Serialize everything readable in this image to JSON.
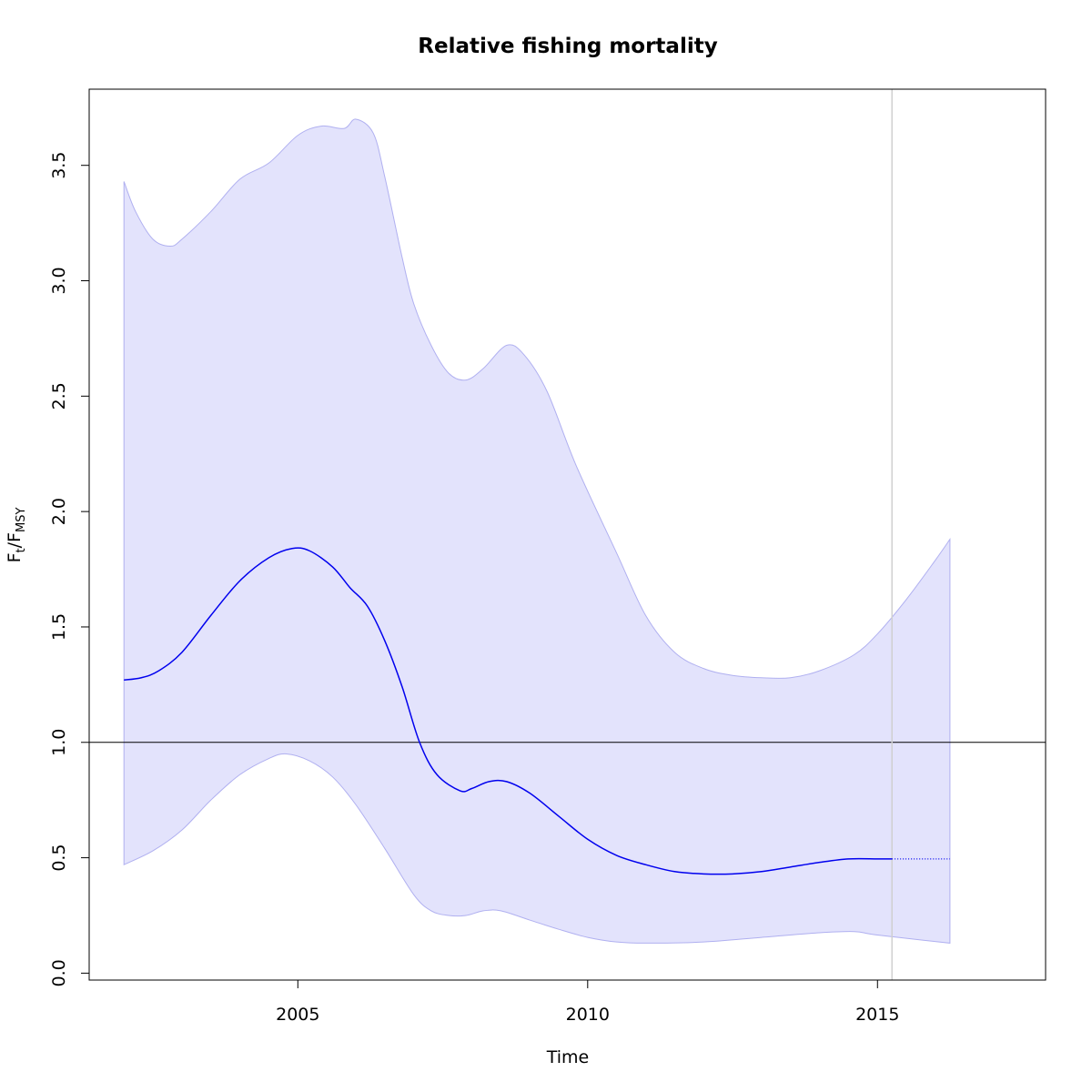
{
  "chart_data": {
    "type": "line",
    "title": "Relative fishing mortality",
    "xlabel": "Time",
    "ylabel": {
      "main": "F",
      "sub1": "t",
      "slash": "/",
      "main2": "F",
      "sub2": "MSY"
    },
    "xlim": [
      2001.4,
      2017.9
    ],
    "ylim": [
      -0.03,
      3.83
    ],
    "x_ticks": [
      2005,
      2010,
      2015
    ],
    "y_ticks": [
      0.0,
      0.5,
      1.0,
      1.5,
      2.0,
      2.5,
      3.0,
      3.5
    ],
    "x_tick_labels": [
      "2005",
      "2010",
      "2015"
    ],
    "y_tick_labels": [
      "0.0",
      "0.5",
      "1.0",
      "1.5",
      "2.0",
      "2.5",
      "3.0",
      "3.5"
    ],
    "reference_line_y": 1.0,
    "last_observation_x": 2015.25,
    "colors": {
      "estimate": "#0000ee",
      "ci_fill": "#e3e3fc",
      "ci_border": "#b0b0f0",
      "reference": "#000000",
      "vertical_marker": "#d0d0d0"
    },
    "series": [
      {
        "name": "estimate",
        "x": [
          2002.0,
          2002.3,
          2002.6,
          2003.0,
          2003.5,
          2004.0,
          2004.5,
          2004.9,
          2005.2,
          2005.6,
          2005.9,
          2006.2,
          2006.5,
          2006.8,
          2007.1,
          2007.4,
          2007.8,
          2008.0,
          2008.3,
          2008.6,
          2009.0,
          2009.5,
          2010.0,
          2010.5,
          2011.0,
          2011.5,
          2012.0,
          2012.5,
          2013.0,
          2013.5,
          2014.0,
          2014.5,
          2015.0,
          2015.25
        ],
        "y": [
          1.27,
          1.28,
          1.31,
          1.39,
          1.55,
          1.7,
          1.8,
          1.84,
          1.83,
          1.76,
          1.67,
          1.59,
          1.44,
          1.24,
          1.0,
          0.86,
          0.79,
          0.8,
          0.83,
          0.83,
          0.78,
          0.68,
          0.58,
          0.51,
          0.47,
          0.44,
          0.43,
          0.43,
          0.44,
          0.46,
          0.48,
          0.495,
          0.495,
          0.495
        ]
      },
      {
        "name": "prediction",
        "x": [
          2015.25,
          2016.25
        ],
        "y": [
          0.495,
          0.495
        ]
      },
      {
        "name": "upper",
        "x": [
          2002.0,
          2002.2,
          2002.5,
          2002.8,
          2003.0,
          2003.5,
          2004.0,
          2004.5,
          2005.0,
          2005.4,
          2005.8,
          2006.0,
          2006.3,
          2006.5,
          2006.8,
          2007.0,
          2007.3,
          2007.6,
          2007.9,
          2008.2,
          2008.6,
          2008.9,
          2009.3,
          2009.8,
          2010.5,
          2011.0,
          2011.5,
          2012.0,
          2012.5,
          2013.0,
          2013.5,
          2014.0,
          2014.6,
          2015.0,
          2015.5,
          2016.0,
          2016.25
        ],
        "y": [
          3.43,
          3.3,
          3.18,
          3.15,
          3.18,
          3.3,
          3.44,
          3.51,
          3.63,
          3.67,
          3.66,
          3.7,
          3.64,
          3.45,
          3.1,
          2.9,
          2.72,
          2.6,
          2.57,
          2.62,
          2.72,
          2.68,
          2.52,
          2.2,
          1.82,
          1.55,
          1.39,
          1.32,
          1.29,
          1.28,
          1.28,
          1.31,
          1.38,
          1.47,
          1.62,
          1.79,
          1.88
        ]
      },
      {
        "name": "lower",
        "x": [
          2002.0,
          2002.5,
          2003.0,
          2003.5,
          2004.0,
          2004.5,
          2004.8,
          2005.2,
          2005.6,
          2006.0,
          2006.5,
          2007.0,
          2007.3,
          2007.6,
          2007.9,
          2008.2,
          2008.5,
          2009.0,
          2009.5,
          2010.0,
          2010.5,
          2011.0,
          2012.0,
          2013.0,
          2014.0,
          2014.6,
          2015.0,
          2016.25
        ],
        "y": [
          0.47,
          0.53,
          0.62,
          0.75,
          0.86,
          0.93,
          0.95,
          0.92,
          0.85,
          0.73,
          0.54,
          0.34,
          0.27,
          0.25,
          0.25,
          0.27,
          0.27,
          0.23,
          0.19,
          0.155,
          0.135,
          0.13,
          0.135,
          0.155,
          0.175,
          0.18,
          0.165,
          0.13
        ]
      }
    ]
  }
}
